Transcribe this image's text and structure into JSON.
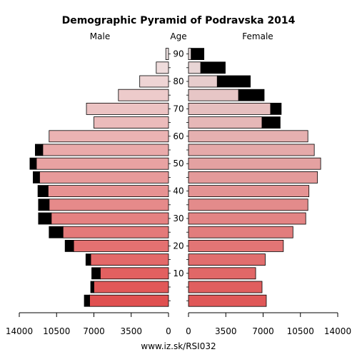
{
  "chart_data": {
    "type": "bar",
    "title": "Demographic Pyramid of Podravska 2014",
    "left_label": "Male",
    "center_label": "Age",
    "right_label": "Female",
    "footer": "www.iz.sk/RSI032",
    "age_groups": [
      "0-4",
      "5-9",
      "10-14",
      "15-19",
      "20-24",
      "25-29",
      "30-34",
      "35-39",
      "40-44",
      "45-49",
      "50-54",
      "55-59",
      "60-64",
      "65-69",
      "70-74",
      "75-79",
      "80-84",
      "85-89",
      "90+"
    ],
    "age_ticks": [
      "10",
      "20",
      "30",
      "40",
      "50",
      "60",
      "70",
      "80",
      "90"
    ],
    "x_ticks_left": [
      "14000",
      "10500",
      "7000",
      "3500",
      "0"
    ],
    "x_ticks_right": [
      "0",
      "3500",
      "7000",
      "10500",
      "14000"
    ],
    "xlim": [
      0,
      14000
    ],
    "series": [
      {
        "name": "Male",
        "values": [
          7400,
          7000,
          6400,
          7300,
          8900,
          9900,
          11000,
          11200,
          11300,
          12100,
          12400,
          11800,
          11200,
          7000,
          7700,
          4700,
          2700,
          1150,
          250
        ],
        "excess": [
          500,
          300,
          800,
          450,
          800,
          1300,
          1200,
          1000,
          950,
          600,
          600,
          700,
          0,
          0,
          0,
          0,
          0,
          0,
          0
        ]
      },
      {
        "name": "Female",
        "values": [
          7300,
          6900,
          6300,
          7200,
          8900,
          9800,
          11000,
          11200,
          11300,
          12100,
          12400,
          11800,
          11200,
          6900,
          7700,
          4700,
          2700,
          1150,
          250
        ],
        "excess": [
          0,
          0,
          0,
          0,
          0,
          0,
          0,
          0,
          0,
          0,
          0,
          0,
          0,
          1700,
          1000,
          2400,
          3100,
          2300,
          1200
        ]
      }
    ],
    "colors": {
      "male_young": "#e05050",
      "male_old": "#f0e4e4",
      "female_young": "#e05858",
      "female_old": "#e8dcdc",
      "excess": "#000000"
    }
  }
}
